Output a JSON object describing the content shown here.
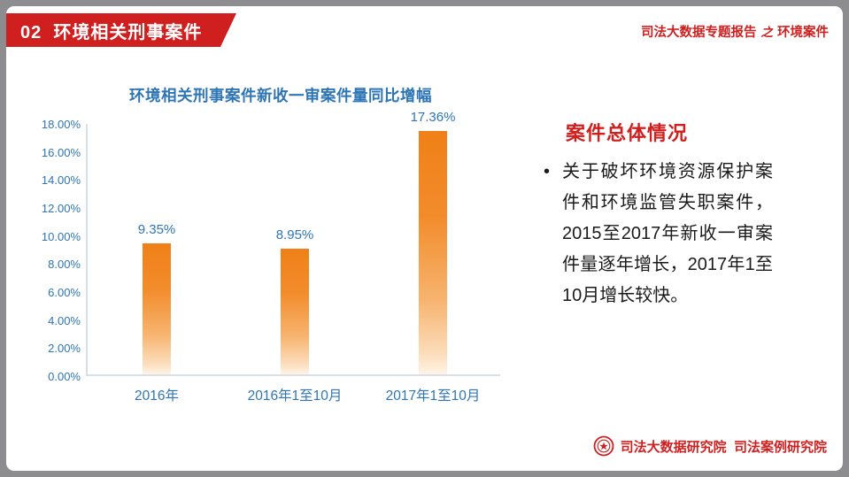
{
  "slide": {
    "section_badge": "02  环境相关刑事案件",
    "header_right": {
      "prefix": "司法大数据专题报告",
      "middle": "之",
      "suffix": "环境案件"
    },
    "right_panel": {
      "heading": "案件总体情况",
      "bullet": "•",
      "paragraph": "关于破坏环境资源保护案件和环境监管失职案件，2015至2017年新收一审案件量逐年增长，2017年1至10月增长较快。"
    },
    "footer": {
      "logo_icon": "court-emblem-icon",
      "text": "司法大数据研究院  司法案例研究院"
    }
  },
  "chart_data": {
    "type": "bar",
    "title": "环境相关刑事案件新收一审案件量同比增幅",
    "categories": [
      "2016年",
      "2016年1至10月",
      "2017年1至10月"
    ],
    "values": [
      9.35,
      8.95,
      17.36
    ],
    "value_labels": [
      "9.35%",
      "8.95%",
      "17.36%"
    ],
    "xlabel": "",
    "ylabel": "",
    "ylim": [
      0,
      18
    ],
    "ytick_step": 2,
    "ytick_labels": [
      "0.00%",
      "2.00%",
      "4.00%",
      "6.00%",
      "8.00%",
      "10.00%",
      "12.00%",
      "14.00%",
      "16.00%",
      "18.00%"
    ],
    "grid": false,
    "legend": false,
    "bar_color_top": "#f08017",
    "bar_color_bottom": "#fff3e6",
    "tick_label_color": "#2e75b6",
    "title_color": "#2e75b6"
  },
  "colors": {
    "accent_red": "#d01f1f",
    "title_blue": "#2e75b6",
    "axis_line": "#d9dfe8",
    "frame_gray": "#8d8d8f"
  }
}
